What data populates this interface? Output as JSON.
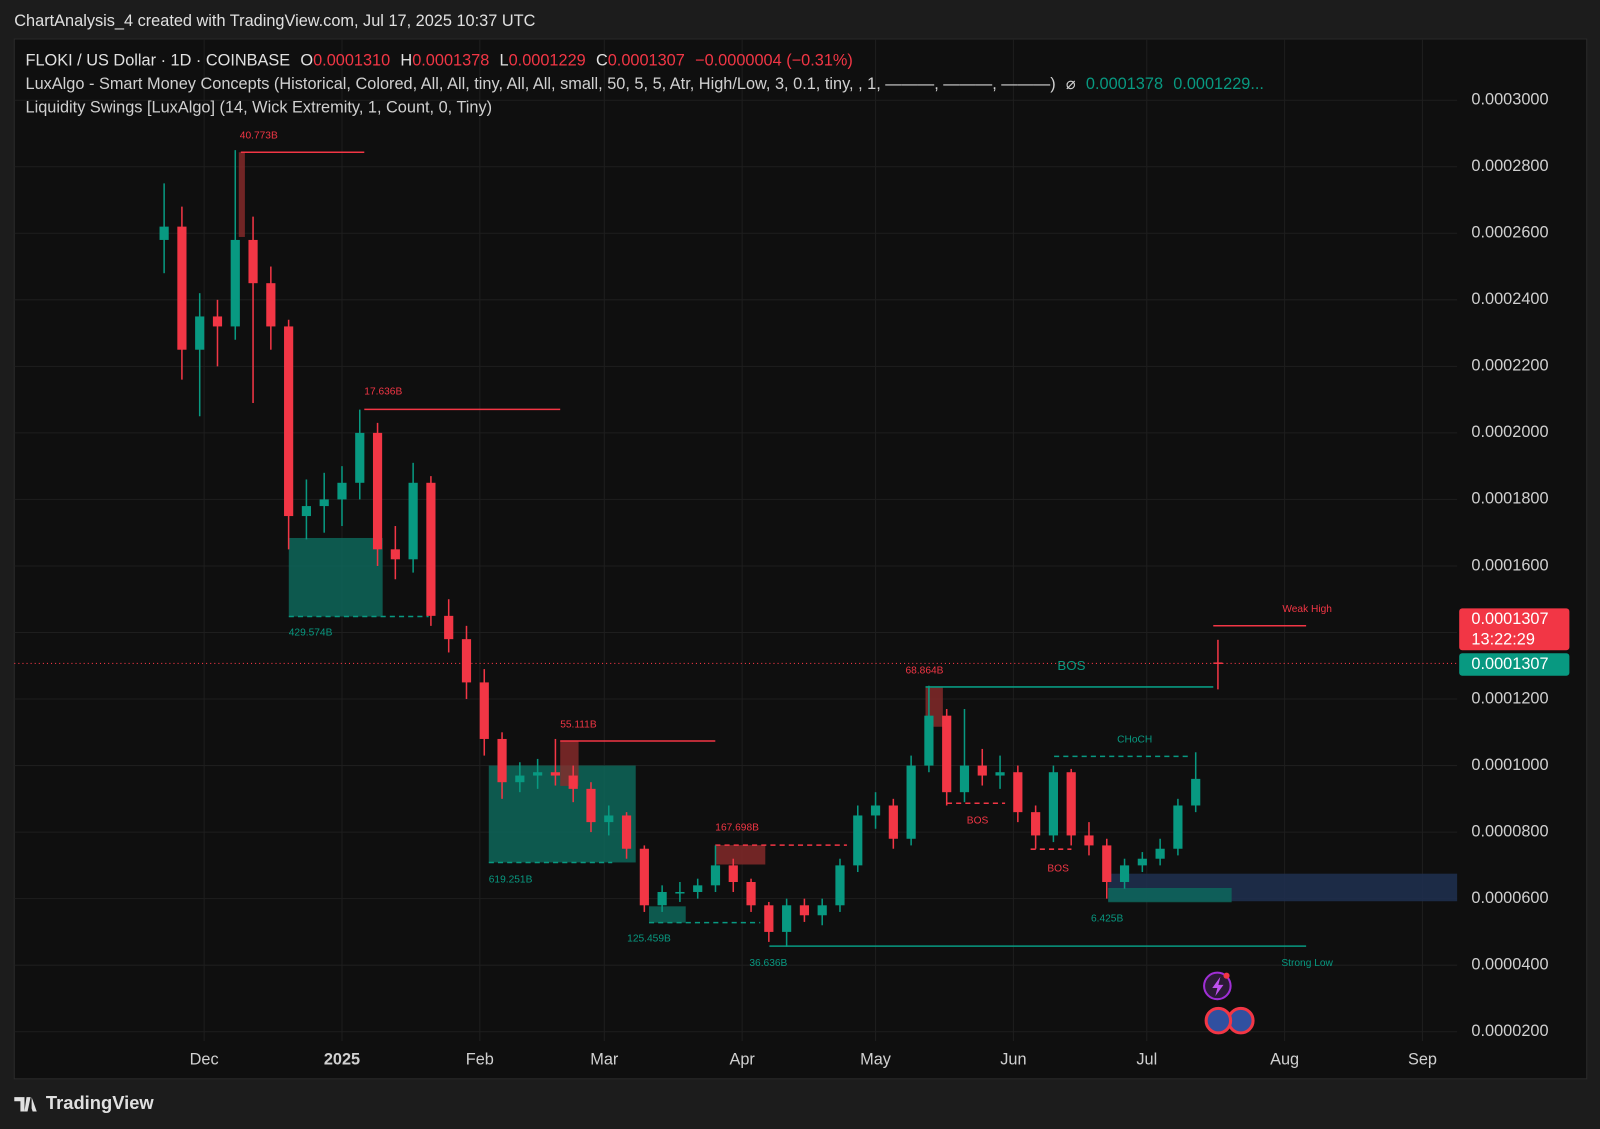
{
  "header": {
    "credit": "ChartAnalysis_4 created with TradingView.com, Jul 17, 2025 10:37 UTC",
    "footer": "TradingView"
  },
  "chart_data": {
    "type": "candlestick",
    "symbol": "FLOKI / US Dollar · 1D · COINBASE",
    "ohlc_legend": [
      {
        "key": "O",
        "text": "0.0001310"
      },
      {
        "key": "H",
        "text": "0.0001378"
      },
      {
        "key": "L",
        "text": "0.0001229"
      },
      {
        "key": "C",
        "text": "0.0001307"
      }
    ],
    "change": "−0.0000004 (−0.31%)",
    "indicators": [
      {
        "text": "LuxAlgo - Smart Money Concepts (Historical, Colored, All, All, tiny, All, All, small, 50, 5, 5, Atr, High/Low, 3, 0.1, tiny, , 1, ———, ———, ———)",
        "extra": [
          "⌀",
          "0.0001378",
          "0.0001229..."
        ]
      },
      {
        "text": "Liquidity Swings [LuxAlgo] (14, Wick Extremity, 1, Count, 0, Tiny)",
        "extra": []
      }
    ],
    "up_color": "#089981",
    "down_color": "#f23645",
    "grid": true,
    "x": [
      0,
      4,
      8,
      12,
      16,
      20,
      24,
      28,
      32,
      36,
      40,
      44,
      48,
      52,
      56,
      60,
      64,
      68,
      72,
      76,
      80,
      84,
      88,
      92,
      96,
      100,
      104,
      108,
      112,
      116,
      120,
      124,
      128,
      132,
      136,
      140,
      144,
      148,
      152,
      156,
      160,
      164,
      168,
      172,
      176,
      180,
      184,
      188,
      192,
      196,
      200,
      204,
      208,
      212,
      216,
      220,
      224,
      228,
      232,
      237
    ],
    "open": [
      0.000258,
      0.000262,
      0.000225,
      0.000235,
      0.000232,
      0.000258,
      0.000245,
      0.000232,
      0.000175,
      0.000178,
      0.00018,
      0.000185,
      0.0002,
      0.000165,
      0.000162,
      0.000185,
      0.000145,
      0.000138,
      0.000125,
      0.000108,
      9.5e-05,
      9.7e-05,
      9.8e-05,
      9.7e-05,
      9.3e-05,
      8.3e-05,
      8.5e-05,
      7.5e-05,
      5.8e-05,
      6.2e-05,
      6.2e-05,
      6.4e-05,
      7e-05,
      6.5e-05,
      5.8e-05,
      5e-05,
      5.8e-05,
      5.5e-05,
      5.8e-05,
      7e-05,
      8.5e-05,
      8.8e-05,
      7.8e-05,
      0.0001,
      0.000115,
      9.2e-05,
      0.0001,
      9.7e-05,
      9.8e-05,
      8.6e-05,
      7.9e-05,
      9.8e-05,
      7.9e-05,
      7.6e-05,
      6.5e-05,
      7e-05,
      7.2e-05,
      7.5e-05,
      8.8e-05,
      0.000131
    ],
    "high": [
      0.000275,
      0.000268,
      0.000242,
      0.00024,
      0.000285,
      0.000265,
      0.00025,
      0.000234,
      0.000186,
      0.000188,
      0.00019,
      0.000207,
      0.000203,
      0.000172,
      0.000191,
      0.000187,
      0.00015,
      0.000142,
      0.000129,
      0.00011,
      0.000101,
      0.000102,
      0.000108,
      0.0001,
      9.5e-05,
      8.8e-05,
      8.6e-05,
      7.6e-05,
      6.4e-05,
      6.5e-05,
      6.6e-05,
      7.6e-05,
      7.2e-05,
      6.6e-05,
      5.9e-05,
      6e-05,
      6e-05,
      6e-05,
      7.2e-05,
      8.8e-05,
      9.2e-05,
      9e-05,
      0.000103,
      0.000124,
      0.000117,
      0.000117,
      0.000105,
      0.000103,
      0.0001,
      8.8e-05,
      0.0001,
      9.9e-05,
      8.3e-05,
      7.8e-05,
      7.2e-05,
      7.4e-05,
      7.8e-05,
      9e-05,
      0.000104,
      0.0001378
    ],
    "low": [
      0.000248,
      0.000216,
      0.000205,
      0.00022,
      0.000228,
      0.000209,
      0.000225,
      0.000165,
      0.000168,
      0.00017,
      0.000172,
      0.00018,
      0.00016,
      0.000156,
      0.000158,
      0.000142,
      0.000134,
      0.00012,
      0.000103,
      9e-05,
      9.2e-05,
      9.3e-05,
      9.4e-05,
      8.9e-05,
      8e-05,
      7.9e-05,
      7.2e-05,
      5.6e-05,
      5.6e-05,
      5.9e-05,
      6e-05,
      6.2e-05,
      6.2e-05,
      5.6e-05,
      4.7e-05,
      4.55e-05,
      5.3e-05,
      5.2e-05,
      5.6e-05,
      6.8e-05,
      8.1e-05,
      7.5e-05,
      7.6e-05,
      9.8e-05,
      8.8e-05,
      8.9e-05,
      9.4e-05,
      9.3e-05,
      8.3e-05,
      7.5e-05,
      7.7e-05,
      7.6e-05,
      7.3e-05,
      6e-05,
      6.3e-05,
      6.8e-05,
      7e-05,
      7.3e-05,
      8.6e-05,
      0.0001229
    ],
    "close": [
      0.000262,
      0.000225,
      0.000235,
      0.000232,
      0.000258,
      0.000245,
      0.000232,
      0.000175,
      0.000178,
      0.00018,
      0.000185,
      0.0002,
      0.000165,
      0.000162,
      0.000185,
      0.000145,
      0.000138,
      0.000125,
      0.000108,
      9.5e-05,
      9.7e-05,
      9.8e-05,
      9.7e-05,
      9.3e-05,
      8.3e-05,
      8.5e-05,
      7.5e-05,
      5.8e-05,
      6.2e-05,
      6.2e-05,
      6.4e-05,
      7e-05,
      6.5e-05,
      5.8e-05,
      5e-05,
      5.8e-05,
      5.5e-05,
      5.8e-05,
      7e-05,
      8.5e-05,
      8.8e-05,
      7.8e-05,
      0.0001,
      0.000115,
      9.2e-05,
      0.0001,
      9.7e-05,
      9.8e-05,
      8.6e-05,
      7.9e-05,
      9.8e-05,
      7.9e-05,
      7.6e-05,
      6.5e-05,
      7e-05,
      7.2e-05,
      7.5e-05,
      8.8e-05,
      9.6e-05,
      0.0001307
    ],
    "xlim": [
      -33.7,
      290.8
    ],
    "xticks": [
      {
        "value": 9,
        "label": "Dec"
      },
      {
        "value": 40,
        "label": "2025"
      },
      {
        "value": 71,
        "label": "Feb"
      },
      {
        "value": 99,
        "label": "Mar"
      },
      {
        "value": 130,
        "label": "Apr"
      },
      {
        "value": 160,
        "label": "May"
      },
      {
        "value": 191,
        "label": "Jun"
      },
      {
        "value": 221,
        "label": "Jul"
      },
      {
        "value": 252,
        "label": "Aug"
      },
      {
        "value": 283,
        "label": "Sep"
      }
    ],
    "ylim": [
      1.72e-05,
      0.0003184
    ],
    "yticks": [
      {
        "value": 2e-05,
        "label": "0.0000200"
      },
      {
        "value": 4e-05,
        "label": "0.0000400"
      },
      {
        "value": 6e-05,
        "label": "0.0000600"
      },
      {
        "value": 8e-05,
        "label": "0.0000800"
      },
      {
        "value": 0.0001,
        "label": "0.0001000"
      },
      {
        "value": 0.00012,
        "label": "0.0001200"
      },
      {
        "value": 0.00014,
        "label": "0.0001400"
      },
      {
        "value": 0.00016,
        "label": "0.0001600"
      },
      {
        "value": 0.00018,
        "label": "0.0001800"
      },
      {
        "value": 0.0002,
        "label": "0.0002000"
      },
      {
        "value": 0.00022,
        "label": "0.0002200"
      },
      {
        "value": 0.00024,
        "label": "0.0002400"
      },
      {
        "value": 0.00026,
        "label": "0.0002600"
      },
      {
        "value": 0.00028,
        "label": "0.0002800"
      },
      {
        "value": 0.0003,
        "label": "0.0003000"
      }
    ],
    "price_tags": [
      "0.0001307",
      "13:22:29",
      "0.0001307"
    ],
    "annotations": [
      {
        "text": "40.773B",
        "color": "#f23645"
      },
      {
        "text": "17.636B",
        "color": "#f23645"
      },
      {
        "text": "429.574B",
        "color": "#089981"
      },
      {
        "text": "55.111B",
        "color": "#f23645"
      },
      {
        "text": "619.251B",
        "color": "#089981"
      },
      {
        "text": "167.698B",
        "color": "#f23645"
      },
      {
        "text": "125.459B",
        "color": "#089981"
      },
      {
        "text": "36.636B",
        "color": "#089981"
      },
      {
        "text": "68.864B",
        "color": "#f23645"
      },
      {
        "text": "BOS",
        "color": "#089981"
      },
      {
        "text": "BOS",
        "color": "#f23645"
      },
      {
        "text": "BOS",
        "color": "#f23645"
      },
      {
        "text": "CHoCH",
        "color": "#089981"
      },
      {
        "text": "6.425B",
        "color": "#089981"
      },
      {
        "text": "Weak High",
        "color": "#f23645"
      },
      {
        "text": "Strong Low",
        "color": "#089981"
      }
    ]
  }
}
